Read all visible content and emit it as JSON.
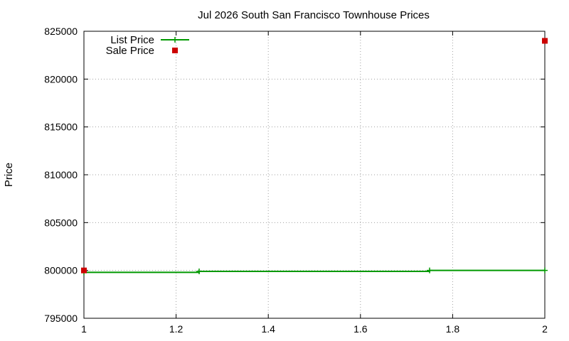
{
  "chart_data": {
    "type": "line",
    "title": "Jul 2026 South San Francisco Townhouse Prices",
    "xlabel": "",
    "ylabel": "Price",
    "xlim": [
      1,
      2
    ],
    "ylim": [
      795000,
      825000
    ],
    "x_ticks": [
      "1",
      "1.2",
      "1.4",
      "1.6",
      "1.8",
      "2"
    ],
    "y_ticks": [
      "795000",
      "800000",
      "805000",
      "810000",
      "815000",
      "820000",
      "825000"
    ],
    "grid": true,
    "legend_position": "top-left",
    "series": [
      {
        "name": "List Price",
        "style": "steps",
        "color": "#009900",
        "points": [
          [
            1,
            799800
          ],
          [
            1.25,
            799900
          ],
          [
            1.75,
            800000
          ],
          [
            2,
            800000
          ]
        ]
      },
      {
        "name": "Sale Price",
        "style": "points",
        "color": "#cc0000",
        "points": [
          [
            1,
            800000
          ],
          [
            2,
            824000
          ]
        ]
      }
    ]
  }
}
